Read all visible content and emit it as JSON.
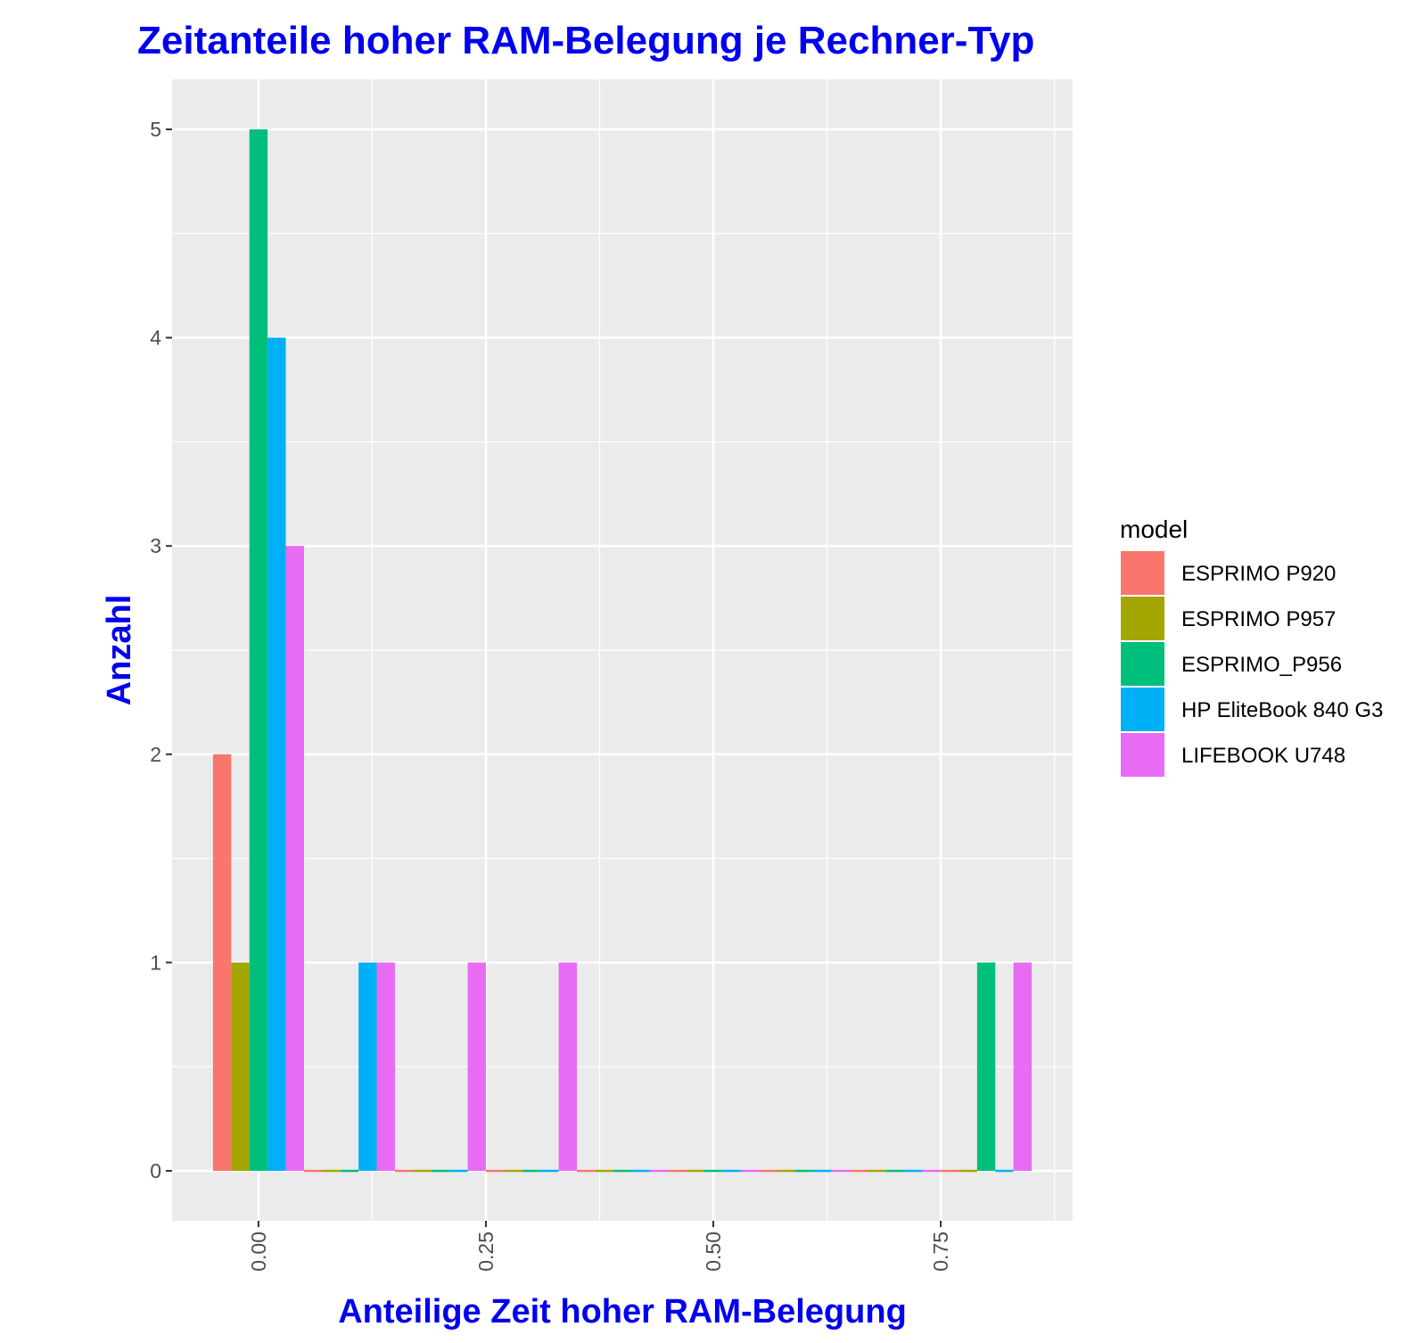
{
  "chart_data": {
    "type": "bar",
    "title": "Zeitanteile hoher RAM-Belegung je Rechner-Typ",
    "xlabel": "Anteilige Zeit hoher RAM-Belegung",
    "ylabel": "Anzahl",
    "x_ticks": [
      "0.00",
      "0.25",
      "0.50",
      "0.75"
    ],
    "y_ticks": [
      "0",
      "1",
      "2",
      "3",
      "4",
      "5"
    ],
    "xlim": [
      -0.095,
      0.895
    ],
    "ylim": [
      -0.24,
      5.24
    ],
    "grid": true,
    "legend_title": "model",
    "legend_placement": "right",
    "bin_width": 0.1,
    "bin_centers": [
      0,
      0.1,
      0.2,
      0.3,
      0.4,
      0.5,
      0.6,
      0.7,
      0.8
    ],
    "series": [
      {
        "name": "ESPRIMO P920",
        "color": "#F8766D",
        "values": [
          2,
          0,
          0,
          0,
          0,
          0,
          0,
          0,
          0
        ]
      },
      {
        "name": "ESPRIMO P957",
        "color": "#A3A500",
        "values": [
          1,
          0,
          0,
          0,
          0,
          0,
          0,
          0,
          0
        ]
      },
      {
        "name": "ESPRIMO_P956",
        "color": "#00BF7D",
        "values": [
          5,
          0,
          0,
          0,
          0,
          0,
          0,
          0,
          1
        ]
      },
      {
        "name": "HP EliteBook 840 G3",
        "color": "#00B0F6",
        "values": [
          4,
          1,
          0,
          0,
          0,
          0,
          0,
          0,
          0
        ]
      },
      {
        "name": "LIFEBOOK U748",
        "color": "#E76BF3",
        "values": [
          3,
          1,
          1,
          1,
          0,
          0,
          0,
          0,
          1
        ]
      }
    ]
  }
}
